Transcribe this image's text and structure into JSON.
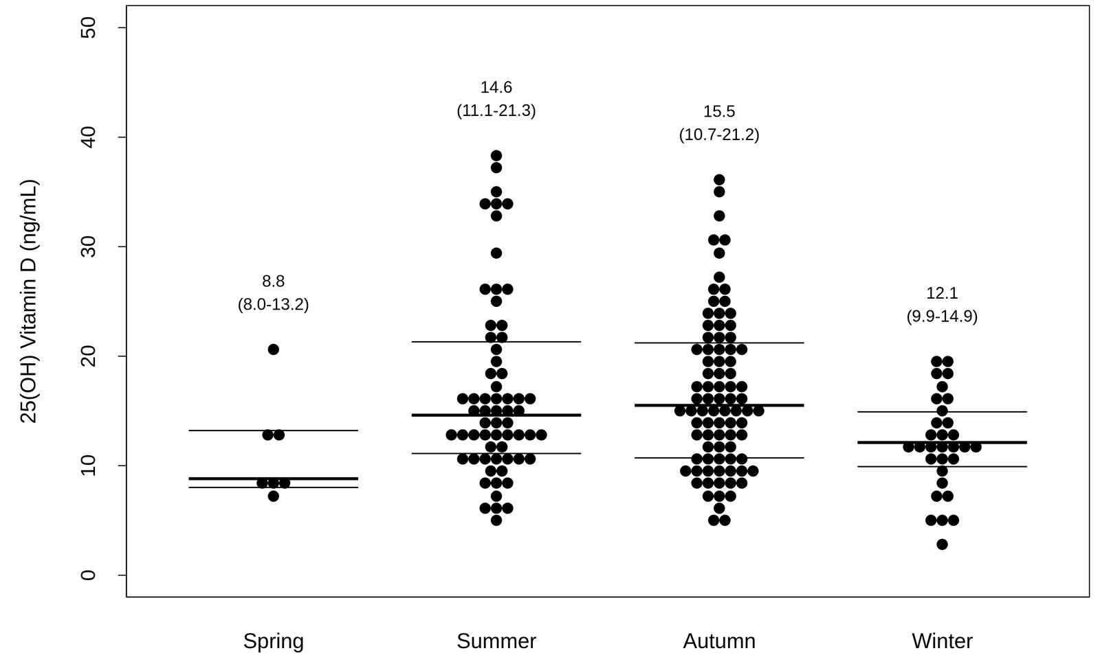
{
  "chart_data": {
    "type": "dot",
    "ylabel": "25(OH) Vitamin D (ng/mL)",
    "categories": [
      "Spring",
      "Summer",
      "Autumn",
      "Winter"
    ],
    "color": "#000000",
    "values": [
      [
        20.6,
        12.8,
        12.8,
        8.4,
        8.4,
        8.4,
        7.2
      ],
      [
        38.3,
        37.2,
        35.0,
        33.9,
        33.9,
        33.9,
        32.8,
        29.4,
        26.1,
        26.1,
        26.1,
        25.0,
        22.8,
        22.8,
        21.7,
        21.7,
        20.6,
        19.5,
        18.4,
        18.4,
        17.2,
        16.1,
        16.1,
        16.1,
        16.1,
        16.1,
        16.1,
        16.1,
        15.0,
        15.0,
        15.0,
        15.0,
        15.0,
        13.9,
        13.9,
        13.9,
        12.8,
        12.8,
        12.8,
        12.8,
        12.8,
        12.8,
        12.8,
        12.8,
        12.8,
        11.7,
        11.7,
        10.6,
        10.6,
        10.6,
        10.6,
        10.6,
        10.6,
        10.6,
        9.5,
        9.5,
        8.4,
        8.4,
        8.4,
        7.2,
        6.1,
        6.1,
        6.1,
        5.0
      ],
      [
        36.1,
        35.0,
        32.8,
        30.6,
        30.6,
        29.4,
        27.2,
        26.1,
        26.1,
        25.0,
        25.0,
        23.9,
        23.9,
        23.9,
        22.8,
        22.8,
        22.8,
        21.7,
        21.7,
        21.7,
        20.6,
        20.6,
        20.6,
        20.6,
        20.6,
        19.5,
        19.5,
        19.5,
        18.4,
        18.4,
        18.4,
        17.2,
        17.2,
        17.2,
        17.2,
        17.2,
        16.1,
        16.1,
        16.1,
        16.1,
        16.1,
        15.0,
        15.0,
        15.0,
        15.0,
        15.0,
        15.0,
        15.0,
        15.0,
        13.9,
        13.9,
        13.9,
        13.9,
        13.9,
        12.8,
        12.8,
        12.8,
        12.8,
        12.8,
        11.7,
        11.7,
        11.7,
        10.6,
        10.6,
        10.6,
        10.6,
        10.6,
        9.5,
        9.5,
        9.5,
        9.5,
        9.5,
        9.5,
        9.5,
        8.4,
        8.4,
        8.4,
        8.4,
        8.4,
        7.2,
        7.2,
        7.2,
        6.1,
        5.0,
        5.0
      ],
      [
        19.5,
        19.5,
        18.4,
        18.4,
        17.2,
        16.1,
        16.1,
        15.0,
        13.9,
        13.9,
        12.8,
        12.8,
        12.8,
        11.7,
        11.7,
        11.7,
        11.7,
        11.7,
        11.7,
        11.7,
        10.6,
        10.6,
        10.6,
        9.5,
        8.4,
        7.2,
        7.2,
        5.0,
        5.0,
        5.0,
        2.8
      ]
    ],
    "medians": [
      8.8,
      14.6,
      15.5,
      12.1
    ],
    "q1": [
      8.0,
      11.1,
      10.7,
      9.9
    ],
    "q3": [
      13.2,
      21.3,
      21.2,
      14.9
    ],
    "iqr_labels": [
      "(8.0-13.2)",
      "(11.1-21.3)",
      "(10.7-21.2)",
      "(9.9-14.9)"
    ],
    "ylim": [
      -2,
      52
    ],
    "yticks": [
      0,
      10,
      20,
      30,
      40,
      50
    ]
  }
}
